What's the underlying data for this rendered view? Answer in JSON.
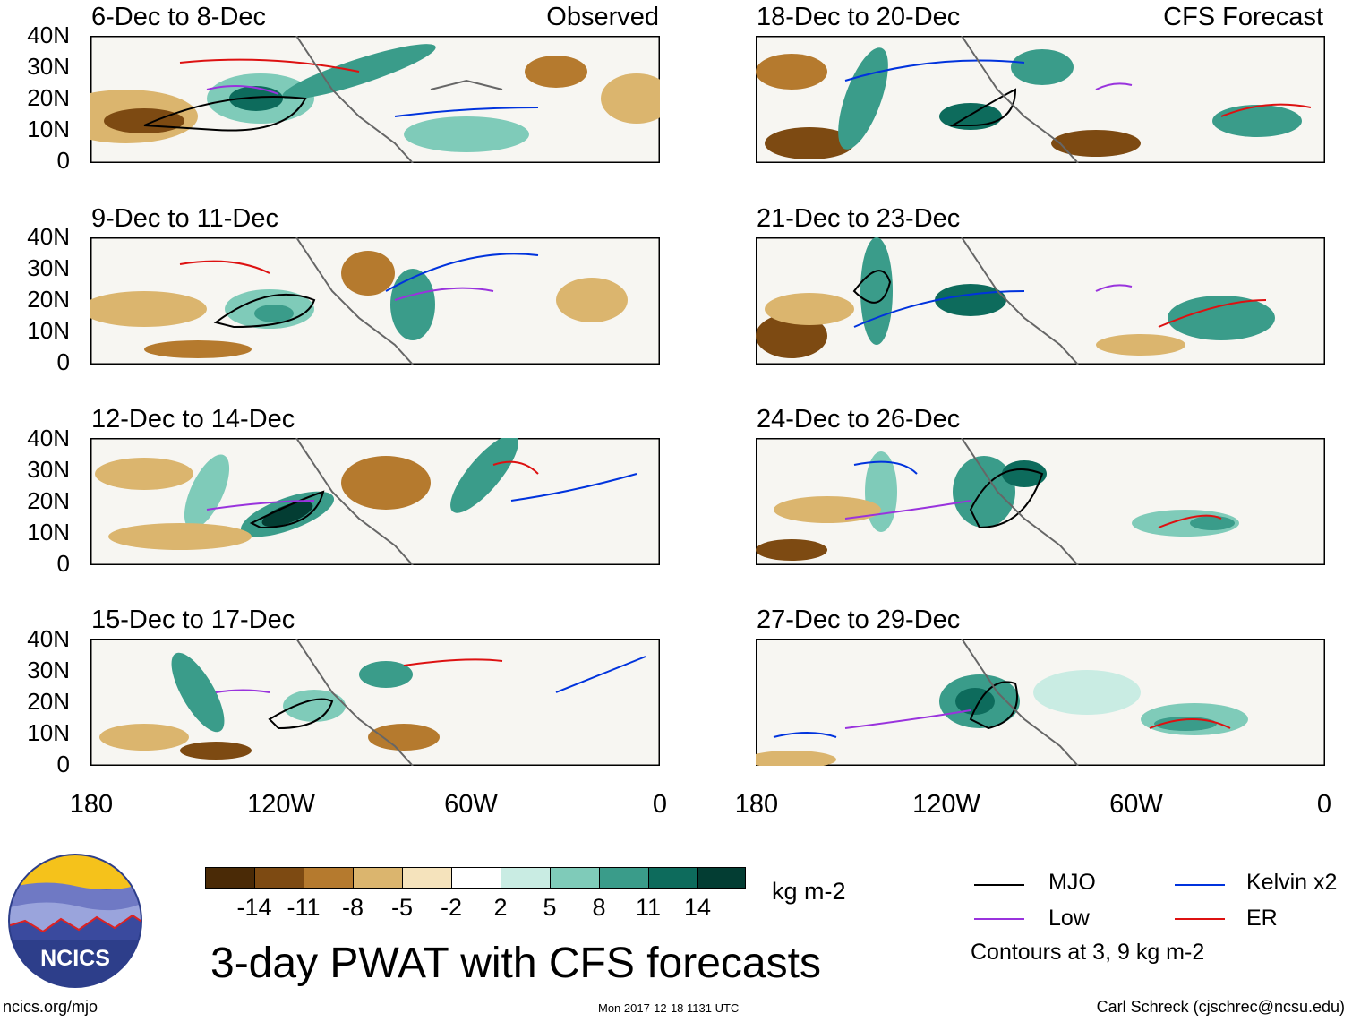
{
  "panels": [
    {
      "title": "6-Dec to 8-Dec",
      "label": "Observed"
    },
    {
      "title": "9-Dec to 11-Dec",
      "label": ""
    },
    {
      "title": "12-Dec to 14-Dec",
      "label": ""
    },
    {
      "title": "15-Dec to 17-Dec",
      "label": ""
    },
    {
      "title": "18-Dec to 20-Dec",
      "label": "CFS Forecast"
    },
    {
      "title": "21-Dec to 23-Dec",
      "label": ""
    },
    {
      "title": "24-Dec to 26-Dec",
      "label": ""
    },
    {
      "title": "27-Dec to 29-Dec",
      "label": ""
    }
  ],
  "axes": {
    "lat_labels": [
      "40N",
      "30N",
      "20N",
      "10N",
      "0"
    ],
    "lon_labels": [
      "180",
      "120W",
      "60W",
      "0"
    ]
  },
  "colorbar": {
    "colors": [
      "#4a2a06",
      "#7d4a12",
      "#b57a2e",
      "#dbb56e",
      "#f5e3bc",
      "#ffffff",
      "#c9ece3",
      "#7fcbb9",
      "#3a9c8a",
      "#0d6b5c",
      "#033d33"
    ],
    "labels": [
      "-14",
      "-11",
      "-8",
      "-5",
      "-2",
      "2",
      "5",
      "8",
      "11",
      "14"
    ],
    "units": "kg m-2"
  },
  "legend": {
    "items": [
      {
        "label": "MJO",
        "color": "#000000"
      },
      {
        "label": "Kelvin x2",
        "color": "#0033dd"
      },
      {
        "label": "Low",
        "color": "#9933dd"
      },
      {
        "label": "ER",
        "color": "#dd1111"
      }
    ],
    "note": "Contours at 3, 9 kg m-2"
  },
  "title": "3-day PWAT with CFS forecasts",
  "logo_text": "NCICS",
  "footer": {
    "url": "ncics.org/mjo",
    "timestamp": "Mon 2017-12-18 1131 UTC",
    "credit": "Carl Schreck (cjschrec@ncsu.edu)"
  }
}
